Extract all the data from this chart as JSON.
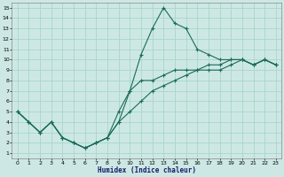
{
  "xlabel": "Humidex (Indice chaleur)",
  "xlim": [
    -0.5,
    23.5
  ],
  "ylim": [
    0.5,
    15.5
  ],
  "xticks": [
    0,
    1,
    2,
    3,
    4,
    5,
    6,
    7,
    8,
    9,
    10,
    11,
    12,
    13,
    14,
    15,
    16,
    17,
    18,
    19,
    20,
    21,
    22,
    23
  ],
  "yticks": [
    1,
    2,
    3,
    4,
    5,
    6,
    7,
    8,
    9,
    10,
    11,
    12,
    13,
    14,
    15
  ],
  "bg_color": "#cde8e4",
  "grid_color": "#a8d5cc",
  "line_color": "#1a6b5a",
  "line1_x": [
    0,
    1,
    2,
    3,
    4,
    5,
    6,
    7,
    8,
    9,
    10,
    11,
    12,
    13,
    14,
    15,
    16,
    17,
    18,
    19,
    20,
    21,
    22,
    23
  ],
  "line1_y": [
    5,
    4,
    3,
    4,
    2.5,
    2,
    1.5,
    2,
    2.5,
    4,
    7,
    10.5,
    13,
    15,
    13.5,
    13,
    11,
    10.5,
    10,
    10,
    10,
    9.5,
    10,
    9.5
  ],
  "line2_x": [
    0,
    1,
    2,
    3,
    4,
    5,
    6,
    7,
    8,
    9,
    10,
    11,
    12,
    13,
    14,
    15,
    16,
    17,
    18,
    19,
    20,
    21,
    22,
    23
  ],
  "line2_y": [
    5,
    4,
    3,
    4,
    2.5,
    2,
    1.5,
    2,
    2.5,
    4,
    5,
    6,
    7,
    7.5,
    8,
    8.5,
    9,
    9,
    9,
    9.5,
    10,
    9.5,
    10,
    9.5
  ],
  "line3_x": [
    0,
    1,
    2,
    3,
    4,
    5,
    6,
    7,
    8,
    9,
    10,
    11,
    12,
    13,
    14,
    15,
    16,
    17,
    18,
    19,
    20,
    21,
    22,
    23
  ],
  "line3_y": [
    5,
    4,
    3,
    4,
    2.5,
    2,
    1.5,
    2,
    2.5,
    5,
    7,
    8,
    8,
    8.5,
    9,
    9,
    9,
    9.5,
    9.5,
    10,
    10,
    9.5,
    10,
    9.5
  ]
}
